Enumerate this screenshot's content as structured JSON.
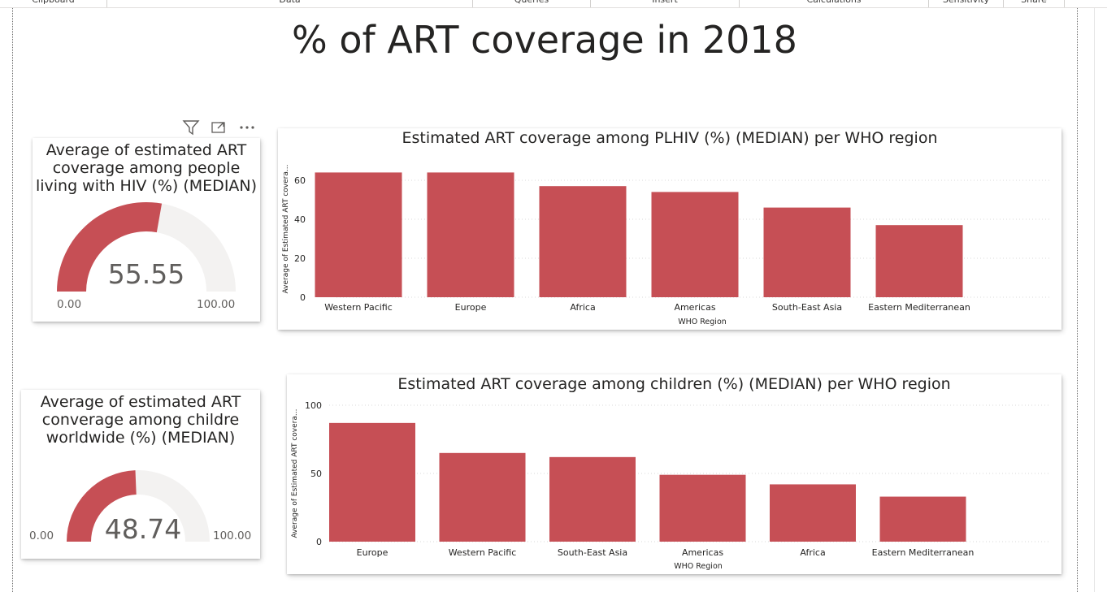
{
  "ribbon": {
    "groups": [
      "Clipboard",
      "Data",
      "Queries",
      "Insert",
      "Calculations",
      "Sensitivity",
      "Share"
    ]
  },
  "page": {
    "title": "% of ART coverage in 2018"
  },
  "header_icons": [
    "filter-icon",
    "focus-mode-icon",
    "more-options-icon"
  ],
  "gauges": [
    {
      "title_lines": [
        "Average of estimated ART",
        "coverage among people",
        "living with HIV (%) (MEDIAN)"
      ],
      "value": 55.55,
      "value_label": "55.55",
      "min": 0,
      "min_label": "0.00",
      "max": 100,
      "max_label": "100.00"
    },
    {
      "title_lines": [
        "Average of estimated ART",
        "converage among childre",
        "worldwide (%) (MEDIAN)"
      ],
      "value": 48.74,
      "value_label": "48.74",
      "min": 0,
      "min_label": "0.00",
      "max": 100,
      "max_label": "100.00"
    }
  ],
  "colors": {
    "bar": "#C64F55",
    "gauge_fill": "#C64F55",
    "gauge_track": "#F3F2F1",
    "grid": "#D8D8D8",
    "axis_text": "#252423"
  },
  "chart_data": [
    {
      "type": "bar",
      "title": "Estimated ART coverage among PLHIV (%) (MEDIAN) per WHO region",
      "xlabel": "WHO Region",
      "ylabel": "Average of Estimated ART covera...",
      "categories": [
        "Western Pacific",
        "Europe",
        "Africa",
        "Americas",
        "South-East Asia",
        "Eastern Mediterranean"
      ],
      "values": [
        64,
        64,
        57,
        54,
        46,
        37
      ],
      "ylim": [
        0,
        70
      ],
      "yticks": [
        0,
        20,
        40,
        60
      ],
      "grid": true
    },
    {
      "type": "bar",
      "title": "Estimated ART coverage among children (%) (MEDIAN) per WHO region",
      "xlabel": "WHO Region",
      "ylabel": "Average of Estimated ART covera...",
      "categories": [
        "Europe",
        "Western Pacific",
        "South-East Asia",
        "Americas",
        "Africa",
        "Eastern Mediterranean"
      ],
      "values": [
        87,
        65,
        62,
        49,
        42,
        33
      ],
      "ylim": [
        0,
        100
      ],
      "yticks": [
        0,
        50,
        100
      ],
      "grid": true
    }
  ]
}
